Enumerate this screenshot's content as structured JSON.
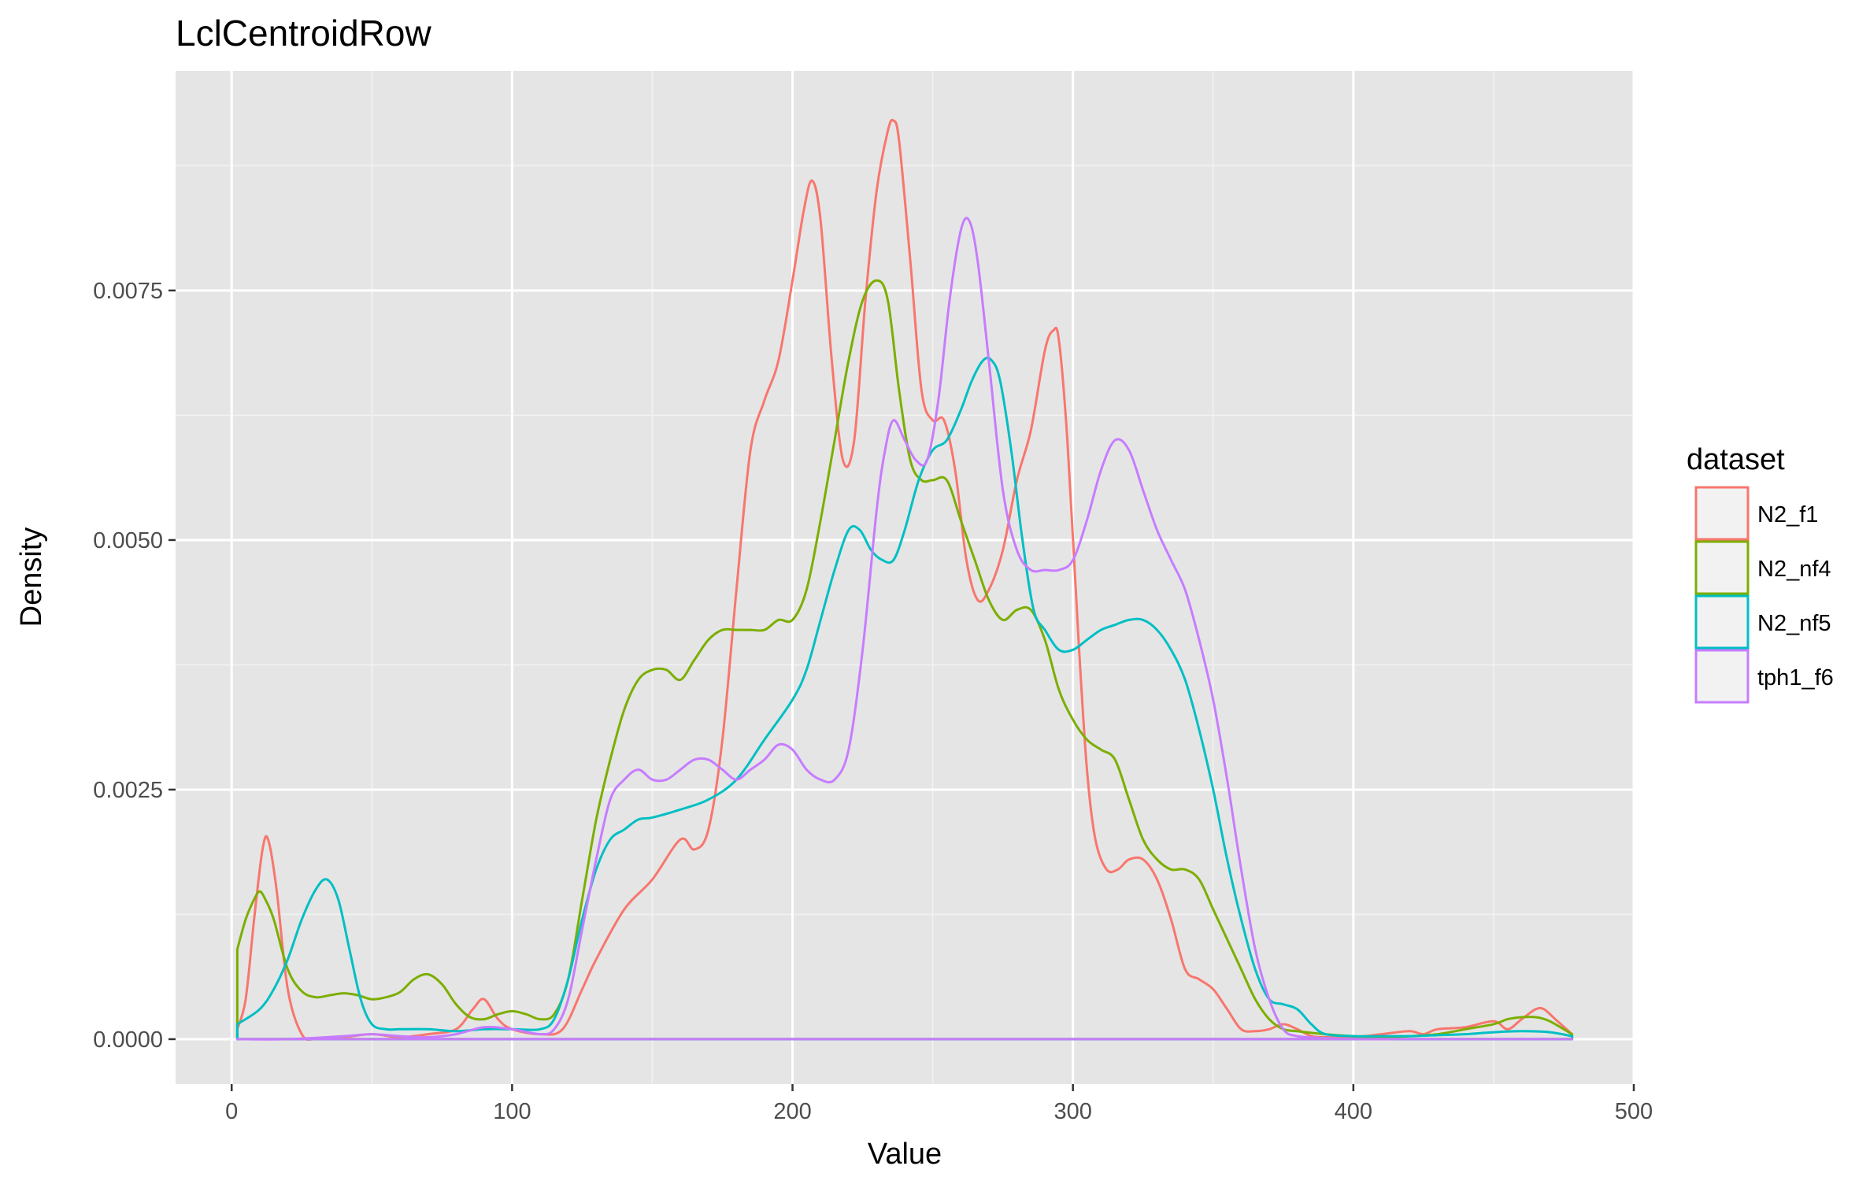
{
  "chart_data": {
    "type": "line",
    "title": "LclCentroidRow",
    "xlabel": "Value",
    "ylabel": "Density",
    "xlim": [
      -20,
      500
    ],
    "ylim": [
      -0.00045,
      0.0097
    ],
    "x_ticks": [
      0,
      100,
      200,
      300,
      400,
      500
    ],
    "x_tick_labels": [
      "0",
      "100",
      "200",
      "300",
      "400",
      "500"
    ],
    "y_ticks": [
      0,
      0.0025,
      0.005,
      0.0075
    ],
    "y_tick_labels": [
      "0.0000",
      "0.0025",
      "0.0050",
      "0.0075"
    ],
    "grid": true,
    "panel_background": "#e5e5e5",
    "grid_color": "#ffffff",
    "legend": {
      "title": "dataset",
      "position": "right"
    },
    "series": [
      {
        "name": "N2_f1",
        "color": "#F8766D",
        "x": [
          2,
          5,
          8,
          11,
          13,
          16,
          20,
          25,
          30,
          40,
          50,
          60,
          70,
          80,
          86,
          90,
          95,
          100,
          110,
          118,
          125,
          130,
          140,
          150,
          160,
          165,
          170,
          175,
          180,
          185,
          190,
          195,
          200,
          204,
          207,
          210,
          214,
          218,
          222,
          226,
          230,
          234,
          236,
          238,
          242,
          246,
          250,
          254,
          258,
          262,
          266,
          270,
          275,
          280,
          285,
          290,
          293,
          295,
          298,
          302,
          305,
          308,
          312,
          316,
          320,
          325,
          330,
          335,
          340,
          345,
          350,
          355,
          360,
          365,
          370,
          375,
          380,
          385,
          390,
          400,
          410,
          420,
          425,
          430,
          440,
          450,
          455,
          460,
          465,
          468,
          472,
          478
        ],
        "y": [
          0.0001,
          0.0004,
          0.0012,
          0.0019,
          0.002,
          0.0015,
          0.0005,
          5e-05,
          0.0,
          2e-05,
          5e-05,
          2e-05,
          5e-05,
          0.0001,
          0.0003,
          0.0004,
          0.0002,
          0.0001,
          5e-05,
          0.0001,
          0.0005,
          0.0008,
          0.0013,
          0.0016,
          0.002,
          0.0019,
          0.0021,
          0.003,
          0.0045,
          0.0059,
          0.0064,
          0.0068,
          0.0076,
          0.0083,
          0.0086,
          0.0082,
          0.0068,
          0.0058,
          0.006,
          0.0074,
          0.0085,
          0.0091,
          0.0092,
          0.009,
          0.0078,
          0.0065,
          0.0062,
          0.0062,
          0.0057,
          0.0048,
          0.0044,
          0.0045,
          0.0049,
          0.0056,
          0.0061,
          0.0069,
          0.0071,
          0.007,
          0.006,
          0.004,
          0.0027,
          0.002,
          0.0017,
          0.0017,
          0.0018,
          0.0018,
          0.0016,
          0.0012,
          0.0007,
          0.0006,
          0.0005,
          0.0003,
          0.0001,
          8e-05,
          0.0001,
          0.00015,
          0.0001,
          3e-05,
          2e-05,
          2e-05,
          5e-05,
          8e-05,
          5e-05,
          0.0001,
          0.00012,
          0.00018,
          0.0001,
          0.0002,
          0.0003,
          0.0003,
          0.0002,
          5e-05
        ]
      },
      {
        "name": "N2_nf4",
        "color": "#7CAE00",
        "x": [
          2,
          5,
          8,
          10,
          12,
          15,
          20,
          25,
          30,
          35,
          40,
          45,
          50,
          55,
          60,
          65,
          70,
          75,
          80,
          85,
          90,
          95,
          100,
          105,
          110,
          115,
          120,
          125,
          130,
          135,
          140,
          145,
          150,
          155,
          160,
          165,
          170,
          175,
          180,
          185,
          190,
          195,
          200,
          205,
          210,
          215,
          220,
          225,
          230,
          234,
          238,
          242,
          246,
          250,
          255,
          260,
          265,
          270,
          275,
          280,
          285,
          290,
          295,
          300,
          305,
          310,
          315,
          320,
          325,
          330,
          335,
          340,
          345,
          350,
          355,
          360,
          365,
          370,
          375,
          380,
          390,
          400,
          410,
          420,
          430,
          440,
          450,
          455,
          460,
          465,
          470,
          478
        ],
        "y": [
          0.0009,
          0.0012,
          0.0014,
          0.00148,
          0.0014,
          0.0012,
          0.0007,
          0.00048,
          0.00042,
          0.00044,
          0.00046,
          0.00044,
          0.0004,
          0.00042,
          0.00047,
          0.0006,
          0.00065,
          0.00055,
          0.00035,
          0.00022,
          0.0002,
          0.00025,
          0.00028,
          0.00025,
          0.0002,
          0.00025,
          0.0006,
          0.0014,
          0.0022,
          0.0028,
          0.0033,
          0.0036,
          0.0037,
          0.0037,
          0.0036,
          0.0038,
          0.004,
          0.0041,
          0.0041,
          0.0041,
          0.0041,
          0.0042,
          0.0042,
          0.0045,
          0.0052,
          0.006,
          0.0068,
          0.0074,
          0.0076,
          0.0074,
          0.0065,
          0.0058,
          0.0056,
          0.0056,
          0.0056,
          0.0052,
          0.0048,
          0.0044,
          0.0042,
          0.0043,
          0.0043,
          0.004,
          0.0035,
          0.0032,
          0.003,
          0.0029,
          0.0028,
          0.0024,
          0.002,
          0.0018,
          0.0017,
          0.0017,
          0.0016,
          0.0013,
          0.001,
          0.0007,
          0.0004,
          0.0002,
          0.0001,
          8e-05,
          5e-05,
          3e-05,
          2e-05,
          3e-05,
          5e-05,
          0.0001,
          0.00015,
          0.0002,
          0.00022,
          0.00022,
          0.00018,
          5e-05
        ]
      },
      {
        "name": "N2_nf5",
        "color": "#00BFC4",
        "x": [
          2,
          10,
          15,
          20,
          25,
          30,
          34,
          38,
          42,
          46,
          50,
          55,
          60,
          70,
          80,
          90,
          100,
          110,
          115,
          120,
          125,
          130,
          135,
          140,
          145,
          150,
          160,
          170,
          180,
          190,
          200,
          205,
          210,
          215,
          220,
          224,
          228,
          232,
          236,
          240,
          245,
          250,
          255,
          260,
          264,
          268,
          271,
          274,
          278,
          282,
          286,
          290,
          295,
          300,
          305,
          310,
          315,
          320,
          325,
          330,
          335,
          340,
          345,
          350,
          355,
          360,
          365,
          370,
          375,
          380,
          385,
          390,
          400,
          410,
          420,
          430,
          440,
          450,
          460,
          470,
          478
        ],
        "y": [
          0.00015,
          0.0003,
          0.0005,
          0.0008,
          0.0012,
          0.0015,
          0.0016,
          0.0014,
          0.0009,
          0.0004,
          0.00015,
          0.0001,
          0.0001,
          0.0001,
          8e-05,
          0.0001,
          0.0001,
          0.0001,
          0.0002,
          0.0006,
          0.0012,
          0.0017,
          0.002,
          0.0021,
          0.0022,
          0.00222,
          0.0023,
          0.0024,
          0.0026,
          0.003,
          0.0034,
          0.0037,
          0.0042,
          0.0047,
          0.0051,
          0.0051,
          0.0049,
          0.0048,
          0.0048,
          0.0051,
          0.0056,
          0.0059,
          0.006,
          0.0063,
          0.0066,
          0.0068,
          0.0068,
          0.0066,
          0.0059,
          0.005,
          0.0043,
          0.0041,
          0.0039,
          0.0039,
          0.004,
          0.0041,
          0.00415,
          0.0042,
          0.0042,
          0.0041,
          0.0039,
          0.0036,
          0.0031,
          0.0025,
          0.0018,
          0.0012,
          0.0007,
          0.0004,
          0.00035,
          0.0003,
          0.00015,
          5e-05,
          3e-05,
          3e-05,
          3e-05,
          4e-05,
          5e-05,
          7e-05,
          8e-05,
          7e-05,
          3e-05
        ]
      },
      {
        "name": "tph1_f6",
        "color": "#C77CFF",
        "x": [
          2,
          20,
          40,
          50,
          60,
          70,
          80,
          90,
          100,
          110,
          115,
          120,
          125,
          130,
          135,
          140,
          145,
          150,
          155,
          160,
          165,
          170,
          175,
          180,
          185,
          190,
          195,
          200,
          205,
          210,
          215,
          220,
          225,
          230,
          233,
          236,
          240,
          244,
          248,
          252,
          256,
          260,
          263,
          266,
          270,
          275,
          280,
          285,
          290,
          295,
          300,
          305,
          310,
          315,
          320,
          325,
          330,
          335,
          340,
          345,
          350,
          355,
          360,
          365,
          370,
          375,
          380,
          390,
          400,
          420,
          440,
          460,
          478
        ],
        "y": [
          0.0,
          0.0,
          3e-05,
          5e-05,
          3e-05,
          2e-05,
          5e-05,
          0.00012,
          0.0001,
          5e-05,
          0.0001,
          0.0004,
          0.0011,
          0.0018,
          0.0024,
          0.0026,
          0.0027,
          0.0026,
          0.0026,
          0.0027,
          0.0028,
          0.0028,
          0.0027,
          0.0026,
          0.0027,
          0.0028,
          0.00295,
          0.0029,
          0.0027,
          0.0026,
          0.0026,
          0.0029,
          0.0039,
          0.0053,
          0.0059,
          0.0062,
          0.006,
          0.0058,
          0.0058,
          0.0064,
          0.0074,
          0.0081,
          0.0082,
          0.0078,
          0.0068,
          0.0055,
          0.0049,
          0.0047,
          0.0047,
          0.0047,
          0.0048,
          0.0052,
          0.0057,
          0.006,
          0.0059,
          0.0055,
          0.0051,
          0.0048,
          0.0045,
          0.004,
          0.0034,
          0.0026,
          0.0017,
          0.0009,
          0.0004,
          0.0001,
          3e-05,
          1e-05,
          0.0,
          0.0,
          0.0,
          0.0,
          0.0
        ]
      }
    ]
  }
}
